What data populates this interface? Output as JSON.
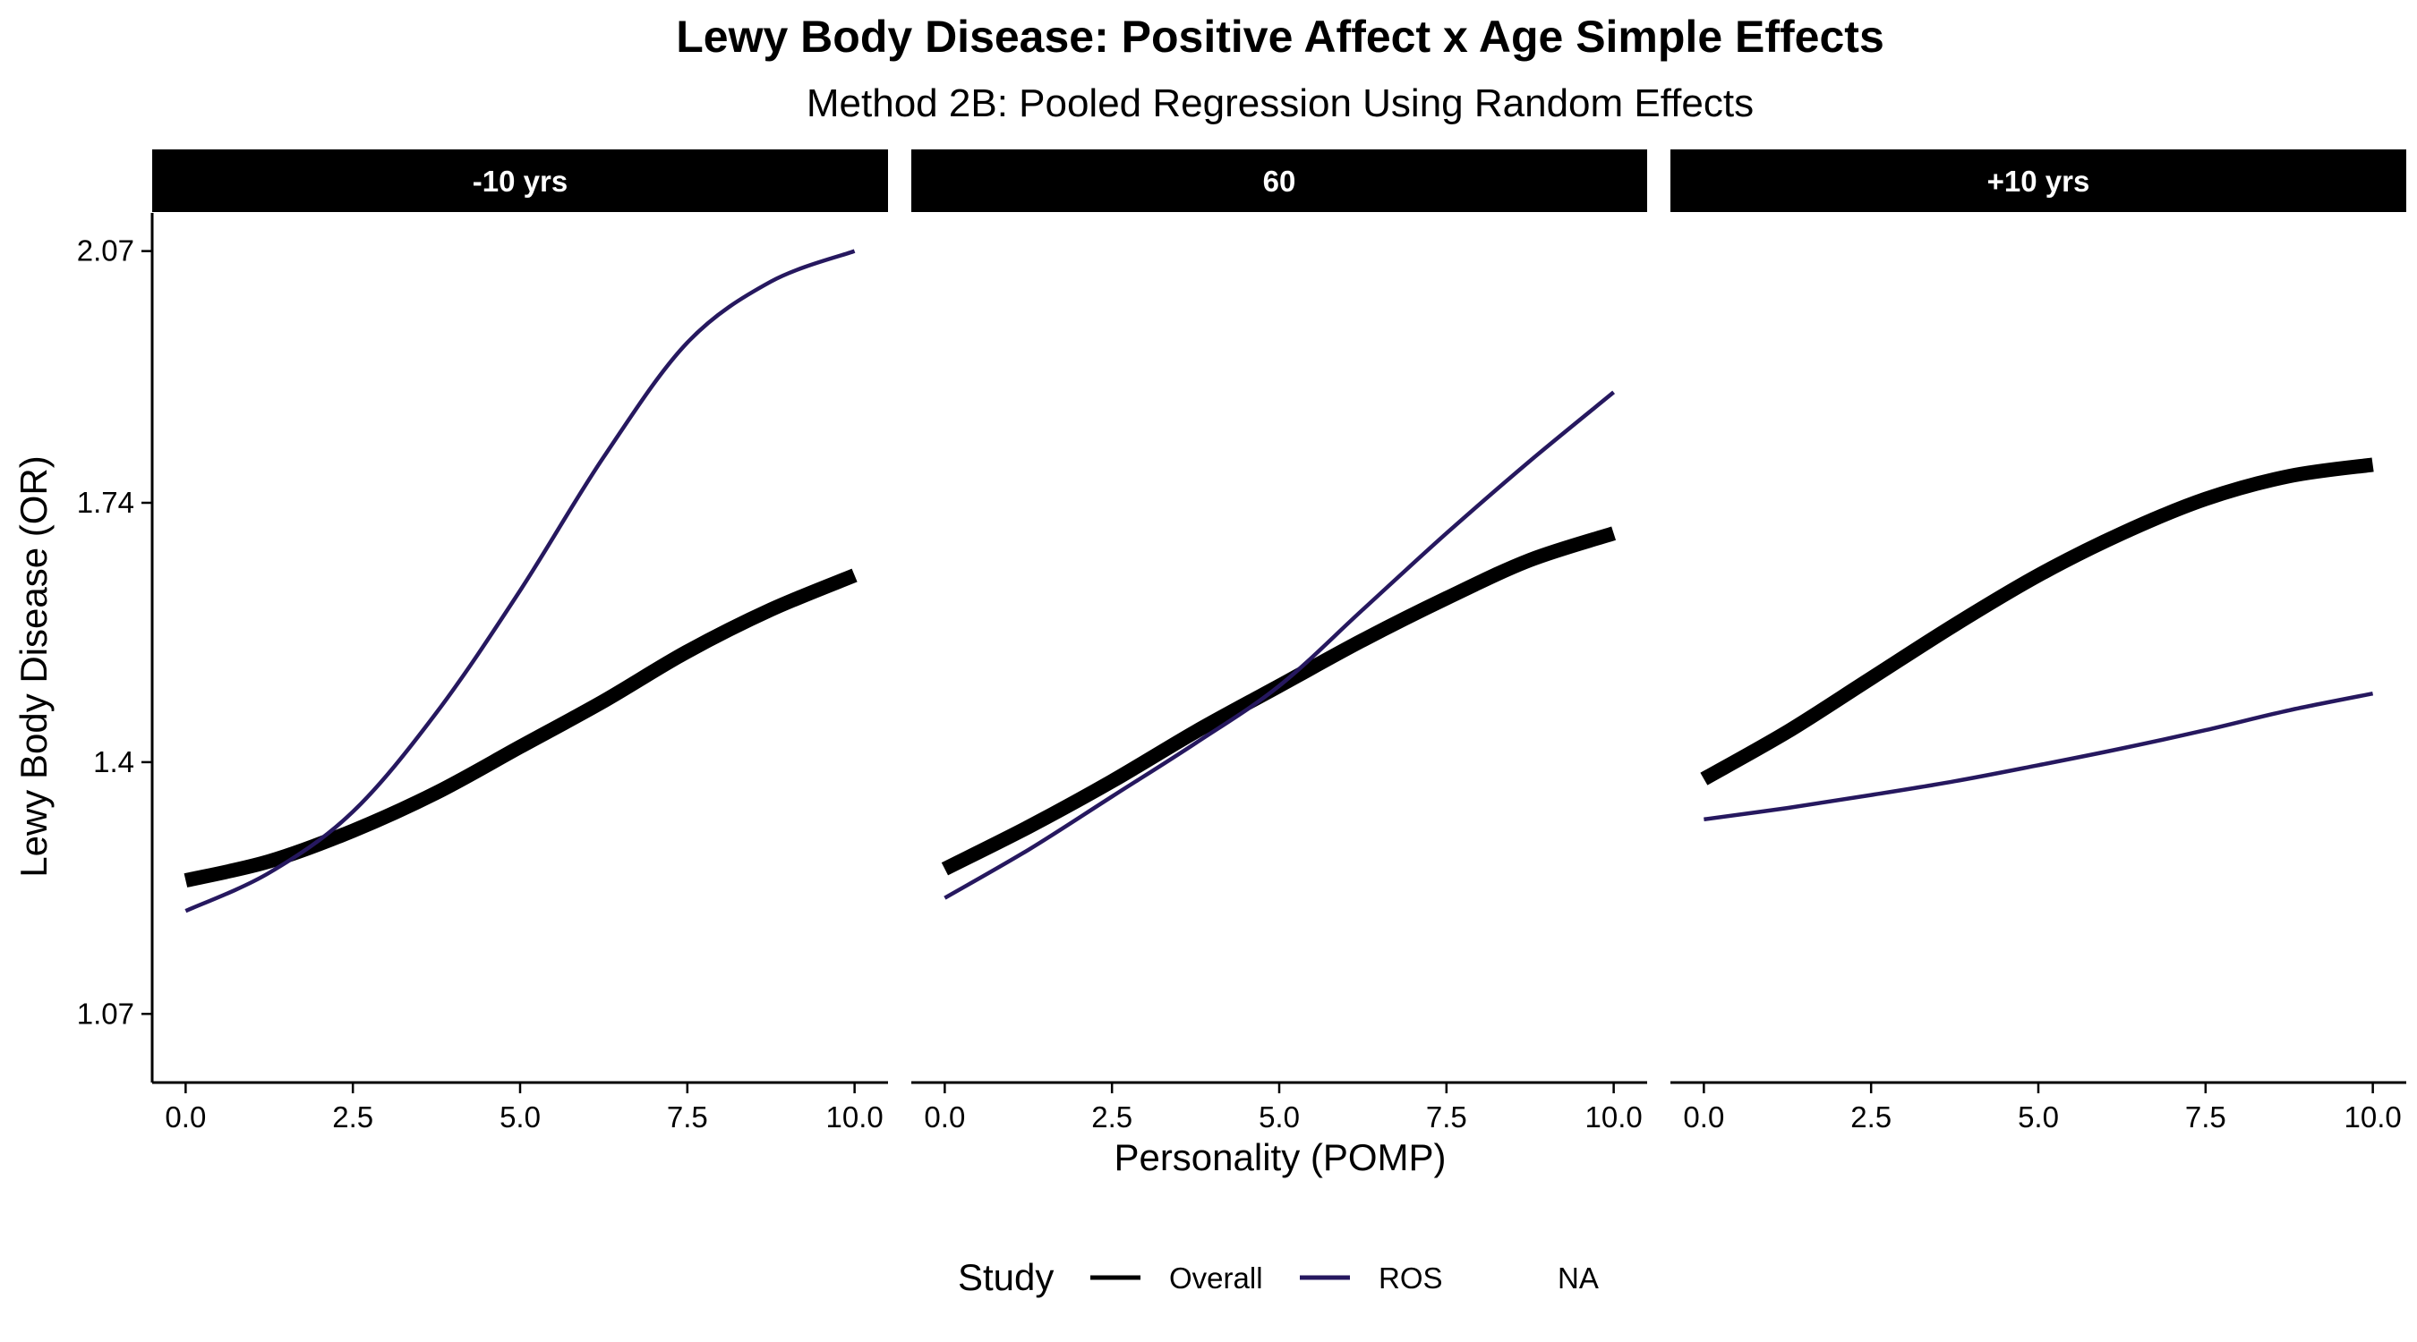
{
  "chart_data": {
    "type": "line",
    "title": "Lewy Body Disease: Positive Affect x Age Simple Effects",
    "subtitle": "Method 2B: Pooled Regression Using Random Effects",
    "xlabel": "Personality (POMP)",
    "ylabel": "Lewy Body Disease (OR)",
    "xlim": [
      -0.5,
      10.5
    ],
    "ylim": [
      0.98,
      2.12
    ],
    "x_ticks": [
      0.0,
      2.5,
      5.0,
      7.5,
      10.0
    ],
    "x_tick_labels": [
      "0.0",
      "2.5",
      "5.0",
      "7.5",
      "10.0"
    ],
    "y_ticks": [
      1.07,
      1.4,
      1.74,
      2.07
    ],
    "y_tick_labels": [
      "1.07",
      "1.4",
      "1.74",
      "2.07"
    ],
    "grid": false,
    "legend": {
      "title": "Study",
      "position": "bottom",
      "entries": [
        {
          "label": "Overall",
          "color": "#000000"
        },
        {
          "label": "ROS",
          "color": "#26185f"
        },
        {
          "label": "NA",
          "color": null
        }
      ]
    },
    "panels": [
      {
        "label": "-10 yrs",
        "series": [
          {
            "name": "Overall",
            "color": "#000000",
            "x": [
              0,
              1.25,
              2.5,
              3.75,
              5,
              6.25,
              7.5,
              8.75,
              10
            ],
            "y": [
              1.245,
              1.27,
              1.31,
              1.36,
              1.42,
              1.48,
              1.545,
              1.6,
              1.645
            ]
          },
          {
            "name": "ROS",
            "color": "#26185f",
            "x": [
              0,
              1.25,
              2.5,
              3.75,
              5,
              6.25,
              7.5,
              8.75,
              10
            ],
            "y": [
              1.205,
              1.255,
              1.335,
              1.465,
              1.625,
              1.8,
              1.95,
              2.03,
              2.07
            ]
          }
        ]
      },
      {
        "label": "60",
        "series": [
          {
            "name": "Overall",
            "color": "#000000",
            "x": [
              0,
              1.25,
              2.5,
              3.75,
              5,
              6.25,
              7.5,
              8.75,
              10
            ],
            "y": [
              1.26,
              1.315,
              1.375,
              1.44,
              1.5,
              1.56,
              1.615,
              1.665,
              1.7
            ]
          },
          {
            "name": "ROS",
            "color": "#26185f",
            "x": [
              0,
              1.25,
              2.5,
              3.75,
              5,
              6.25,
              7.5,
              8.75,
              10
            ],
            "y": [
              1.222,
              1.285,
              1.355,
              1.425,
              1.5,
              1.6,
              1.7,
              1.795,
              1.885
            ]
          }
        ]
      },
      {
        "label": "+10 yrs",
        "series": [
          {
            "name": "Overall",
            "color": "#000000",
            "x": [
              0,
              1.25,
              2.5,
              3.75,
              5,
              6.25,
              7.5,
              8.75,
              10
            ],
            "y": [
              1.378,
              1.44,
              1.51,
              1.58,
              1.645,
              1.7,
              1.745,
              1.775,
              1.79
            ]
          },
          {
            "name": "ROS",
            "color": "#26185f",
            "x": [
              0,
              1.25,
              2.5,
              3.75,
              5,
              6.25,
              7.5,
              8.75,
              10
            ],
            "y": [
              1.325,
              1.34,
              1.357,
              1.375,
              1.396,
              1.418,
              1.442,
              1.468,
              1.49
            ]
          }
        ]
      }
    ]
  }
}
